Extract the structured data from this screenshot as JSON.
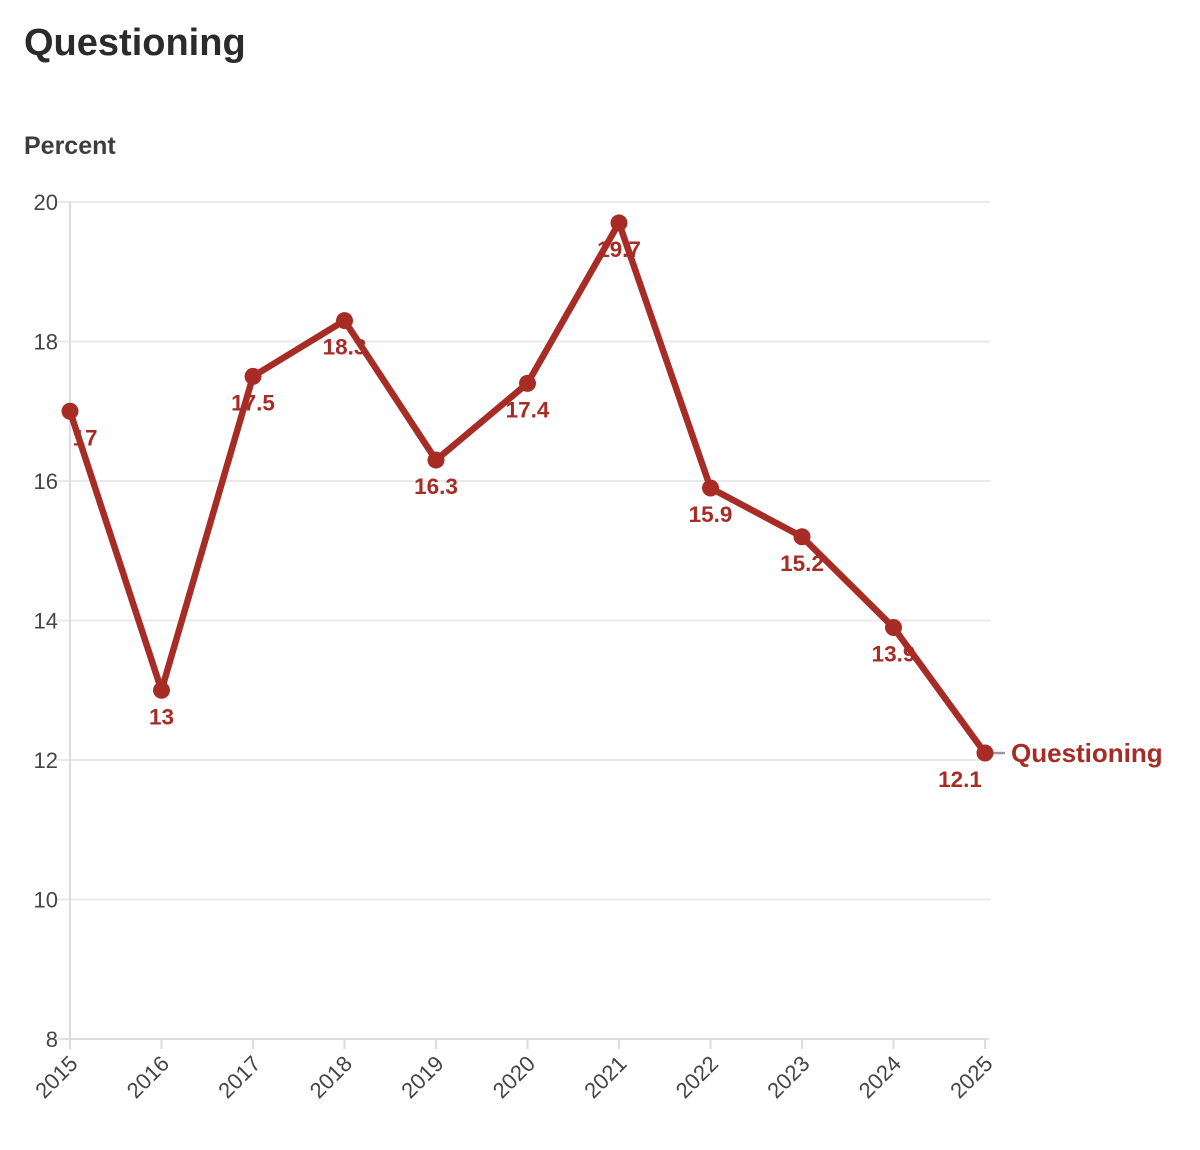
{
  "page": {
    "title": "Questioning"
  },
  "chart_data": {
    "type": "line",
    "title": "Questioning",
    "xlabel": "",
    "ylabel": "Percent",
    "categories": [
      "2015",
      "2016",
      "2017",
      "2018",
      "2019",
      "2020",
      "2021",
      "2022",
      "2023",
      "2024",
      "2025"
    ],
    "series": [
      {
        "name": "Questioning",
        "values": [
          17,
          13,
          17.5,
          18.3,
          16.3,
          17.4,
          19.7,
          15.9,
          15.2,
          13.9,
          12.1
        ],
        "point_labels": [
          "17",
          "13",
          "17.5",
          "18.3",
          "16.3",
          "17.4",
          "19.7",
          "15.9",
          "15.2",
          "13.9",
          "12.1"
        ]
      }
    ],
    "yticks": [
      8,
      10,
      12,
      14,
      16,
      18,
      20
    ],
    "ylim": [
      8,
      20.3
    ],
    "grid": "horizontal",
    "legend_position": "end-of-line",
    "label_dx": {
      "2015": 15,
      "2025": -25
    },
    "colors": {
      "line": "#A72C26",
      "point": "#A72C26",
      "data_label": "#A72C26",
      "series_label": "#A72C26",
      "title_text": "#2B2B2B",
      "axis_text": "#454545",
      "gridline": "#E9E9E9",
      "axis_line": "#DCDCDC",
      "legend_dash": "#999999"
    }
  }
}
